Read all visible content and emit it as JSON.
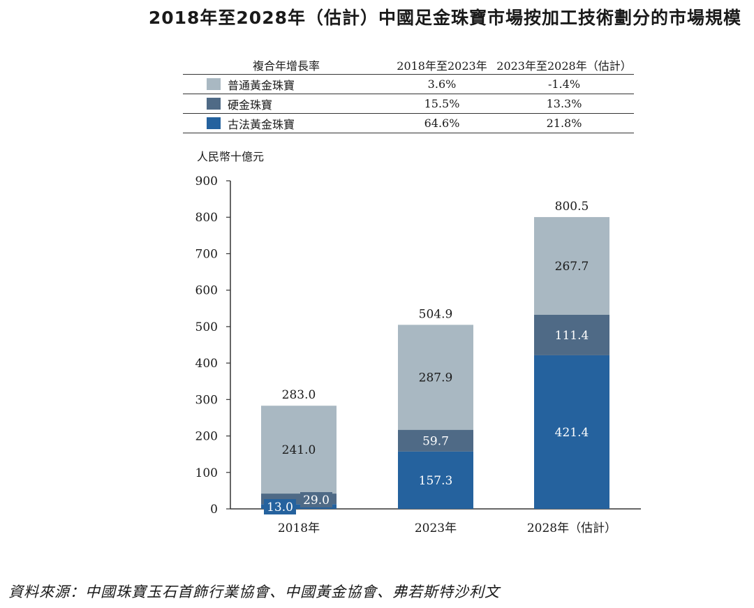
{
  "title": "2018年至2028年（估計）中國足金珠寶市場按加工技術劃分的市場規模",
  "cagr_table": {
    "header": [
      "複合年增長率",
      "2018年至2023年",
      "2023年至2028年（估計）"
    ],
    "rows": [
      {
        "label": "普通黃金珠寶",
        "color": "#a9b8c2",
        "cagr_2018_2023": "3.6%",
        "cagr_2023_2028": "-1.4%"
      },
      {
        "label": "硬金珠寶",
        "color": "#4f6a86",
        "cagr_2018_2023": "15.5%",
        "cagr_2023_2028": "13.3%"
      },
      {
        "label": "古法黃金珠寶",
        "color": "#25629e",
        "cagr_2018_2023": "64.6%",
        "cagr_2023_2028": "21.8%"
      }
    ]
  },
  "chart_data": {
    "type": "bar",
    "stacked": true,
    "unit_label": "人民幣十億元",
    "categories": [
      "2018年",
      "2023年",
      "2028年（估計）"
    ],
    "series": [
      {
        "name": "古法黃金珠寶",
        "color": "#25629e",
        "values": [
          13.0,
          157.3,
          421.4
        ],
        "labels": [
          "13.0",
          "157.3",
          "421.4"
        ]
      },
      {
        "name": "硬金珠寶",
        "color": "#4f6a86",
        "values": [
          29.0,
          59.7,
          111.4
        ],
        "labels": [
          "29.0",
          "59.7",
          "111.4"
        ]
      },
      {
        "name": "普通黃金珠寶",
        "color": "#a9b8c2",
        "values": [
          241.0,
          287.9,
          267.7
        ],
        "labels": [
          "241.0",
          "287.9",
          "267.7"
        ]
      }
    ],
    "totals": [
      "283.0",
      "504.9",
      "800.5"
    ],
    "ylim": [
      0,
      900
    ],
    "yticks": [
      "0",
      "100",
      "200",
      "300",
      "400",
      "500",
      "600",
      "700",
      "800",
      "900"
    ]
  },
  "source": "資料來源：中國珠寶玉石首飾行業協會、中國黃金協會、弗若斯特沙利文"
}
